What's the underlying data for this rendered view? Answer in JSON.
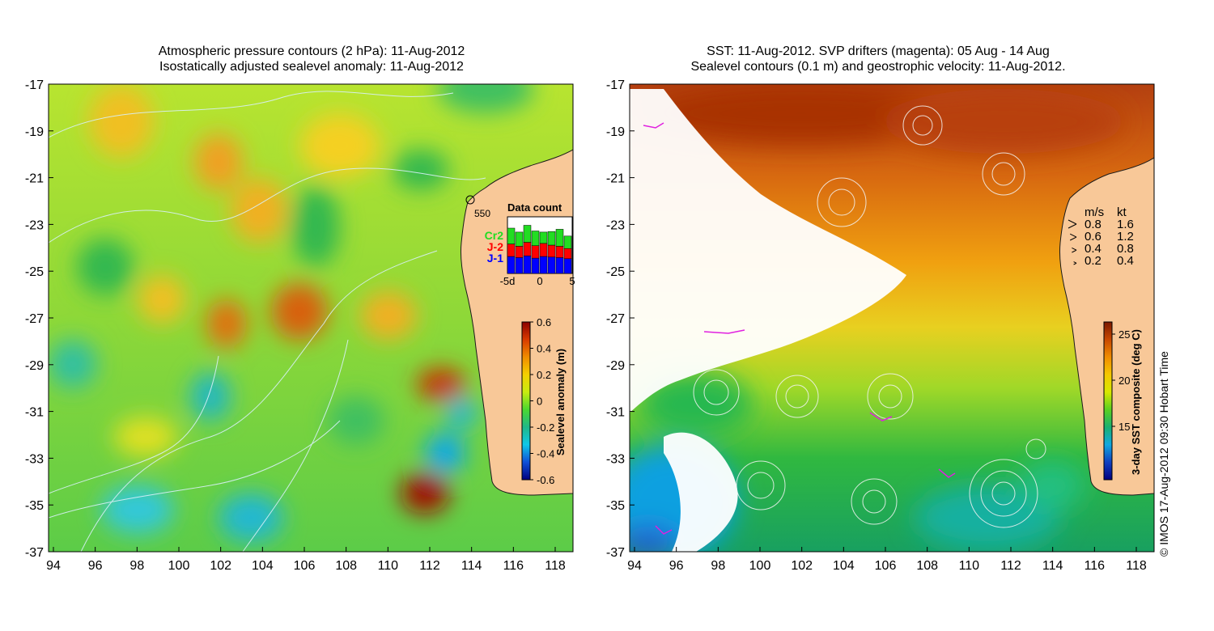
{
  "left_panel": {
    "title_line1": "Atmospheric pressure contours (2 hPa): 11-Aug-2012",
    "title_line2": "Isostatically adjusted sealevel anomaly: 11-Aug-2012",
    "depth_label": "550",
    "data_count": {
      "title": "Data count",
      "legend": [
        {
          "label": "Cr2",
          "color": "#22dd22"
        },
        {
          "label": "J-2",
          "color": "#ff0000"
        },
        {
          "label": "J-1",
          "color": "#0000ff"
        }
      ],
      "xticks": [
        "-5d",
        "0",
        "5"
      ],
      "bars": [
        {
          "j1": 30,
          "j2": 22,
          "cr2": 28
        },
        {
          "j1": 28,
          "j2": 20,
          "cr2": 25
        },
        {
          "j1": 31,
          "j2": 24,
          "cr2": 30
        },
        {
          "j1": 27,
          "j2": 22,
          "cr2": 26
        },
        {
          "j1": 30,
          "j2": 23,
          "cr2": 20
        },
        {
          "j1": 29,
          "j2": 21,
          "cr2": 24
        },
        {
          "j1": 28,
          "j2": 20,
          "cr2": 30
        },
        {
          "j1": 26,
          "j2": 18,
          "cr2": 22
        }
      ],
      "bar_max": 100
    },
    "colorbar": {
      "label": "Sealevel anomaly (m)",
      "ticks": [
        "0.6",
        "0.4",
        "0.2",
        "0",
        "-0.2",
        "-0.4",
        "-0.6"
      ],
      "colors": [
        "#8b0000",
        "#d83a00",
        "#f08c00",
        "#f4d000",
        "#c8ec10",
        "#4ad830",
        "#20b888",
        "#10c8e8",
        "#1050d8",
        "#000080"
      ]
    }
  },
  "right_panel": {
    "title_line1": "SST: 11-Aug-2012. SVP drifters (magenta): 05 Aug - 14 Aug",
    "title_line2": "Sealevel contours (0.1 m) and geostrophic velocity: 11-Aug-2012.",
    "velocity_legend": {
      "header_ms": "m/s",
      "header_kt": "kt",
      "rows": [
        {
          "ms": "0.8",
          "kt": "1.6"
        },
        {
          "ms": "0.6",
          "kt": "1.2"
        },
        {
          "ms": "0.4",
          "kt": "0.8"
        },
        {
          "ms": "0.2",
          "kt": "0.4"
        }
      ]
    },
    "colorbar": {
      "label": "3-day SST composite (deg C)",
      "ticks": [
        "25",
        "20",
        "15"
      ],
      "colors": [
        "#7a1800",
        "#c84800",
        "#f08c00",
        "#f4c800",
        "#d8e800",
        "#5ad020",
        "#18b070",
        "#10a8e0",
        "#1040c0",
        "#000080"
      ]
    }
  },
  "axes": {
    "xticks": [
      "94",
      "96",
      "98",
      "100",
      "102",
      "104",
      "106",
      "108",
      "110",
      "112",
      "114",
      "116",
      "118"
    ],
    "yticks": [
      "-17",
      "-19",
      "-21",
      "-23",
      "-25",
      "-27",
      "-29",
      "-31",
      "-33",
      "-35",
      "-37"
    ]
  },
  "credit": "© IMOS 17-Aug-2012 09:30 Hobart Time"
}
